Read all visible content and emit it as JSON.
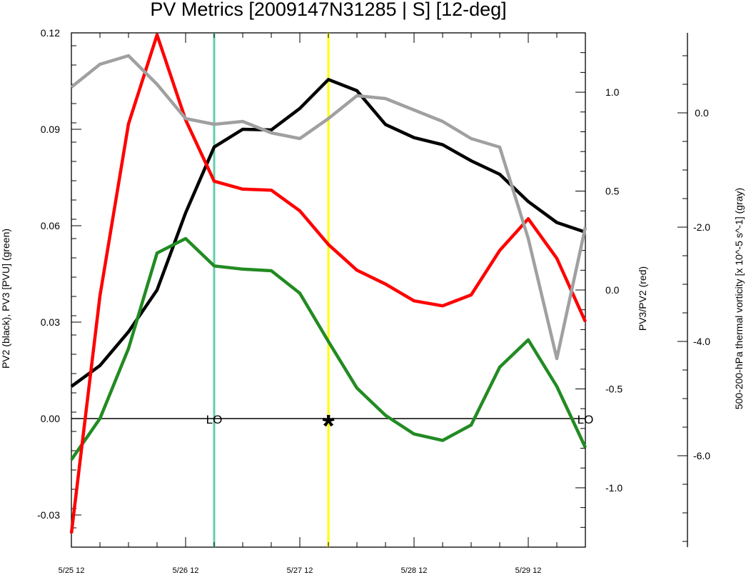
{
  "chart_data": {
    "type": "line",
    "title": "PV Metrics [2009147N31285 | S] [12-deg]",
    "x_categories": [
      "5/25 12",
      "5/25 18",
      "5/26 00",
      "5/26 06",
      "5/26 12",
      "5/26 18",
      "5/27 00",
      "5/27 06",
      "5/27 12",
      "5/27 18",
      "5/28 00",
      "5/28 06",
      "5/28 12",
      "5/28 18",
      "5/29 00",
      "5/29 06",
      "5/29 12",
      "5/29 18",
      "5/30 00"
    ],
    "x_tick_labels": [
      "5/25 12",
      "5/26 12",
      "5/27 12",
      "5/28 12",
      "5/29 12"
    ],
    "left_axis": {
      "label": "PV2 (black), PV3 [PVU] (green)",
      "ylim": [
        -0.04,
        0.12
      ],
      "ticks": [
        "0.12",
        "0.09",
        "0.06",
        "0.03",
        "0.00",
        "-0.03"
      ]
    },
    "right_axis_1": {
      "label": "PV3/PV2 (red)",
      "ylim": [
        -1.3,
        1.3
      ],
      "ticks": [
        "1.0",
        "0.5",
        "0.0",
        "-0.5",
        "-1.0"
      ]
    },
    "right_axis_2": {
      "label": "500-200-hPa thermal vorticity [x 10^-5 s^-1] (gray)",
      "ylim": [
        -7.6,
        1.4
      ],
      "ticks": [
        "0.0",
        "-2.0",
        "-4.0",
        "-6.0"
      ]
    },
    "series": [
      {
        "axis": "left",
        "color": "#000000",
        "values": [
          0.01,
          0.0165,
          0.027,
          0.04,
          0.064,
          0.0845,
          0.09,
          0.0898,
          0.0965,
          0.1055,
          0.102,
          0.0915,
          0.0874,
          0.0852,
          0.0802,
          0.076,
          0.0675,
          0.061,
          0.058
        ]
      },
      {
        "axis": "left",
        "color": "#228b22",
        "values": [
          -0.0128,
          0.0,
          0.0218,
          0.0515,
          0.056,
          0.0475,
          0.0465,
          0.046,
          0.039,
          0.024,
          0.0095,
          0.001,
          -0.0048,
          -0.0068,
          -0.002,
          0.016,
          0.0245,
          0.01,
          -0.009
        ]
      },
      {
        "axis": "right_1",
        "color": "#ff0000",
        "values": [
          -1.23,
          -0.03,
          0.84,
          1.29,
          0.86,
          0.55,
          0.51,
          0.505,
          0.4,
          0.23,
          0.1,
          0.03,
          -0.055,
          -0.08,
          -0.025,
          0.2,
          0.36,
          0.16,
          -0.16
        ]
      },
      {
        "axis": "right_2",
        "color": "#a0a0a0",
        "values": [
          0.45,
          0.85,
          1.0,
          0.5,
          -0.1,
          -0.2,
          -0.15,
          -0.35,
          -0.45,
          -0.1,
          0.3,
          0.25,
          0.05,
          -0.15,
          -0.45,
          -0.6,
          -2.2,
          -4.3,
          -2.0
        ]
      }
    ],
    "vertical_lines": [
      {
        "x": "5/26 18",
        "color": "#66cdaa"
      },
      {
        "x": "5/27 18",
        "color": "#ffff00"
      }
    ],
    "annotations": [
      {
        "text": "LO",
        "x": "5/26 18",
        "y": 0.0
      },
      {
        "text": "LO",
        "x": "5/30 00",
        "y": 0.0
      },
      {
        "text": "*",
        "x": "5/27 18",
        "y": 0.0
      }
    ],
    "zero_line": true,
    "grid": false,
    "legend": "none"
  }
}
